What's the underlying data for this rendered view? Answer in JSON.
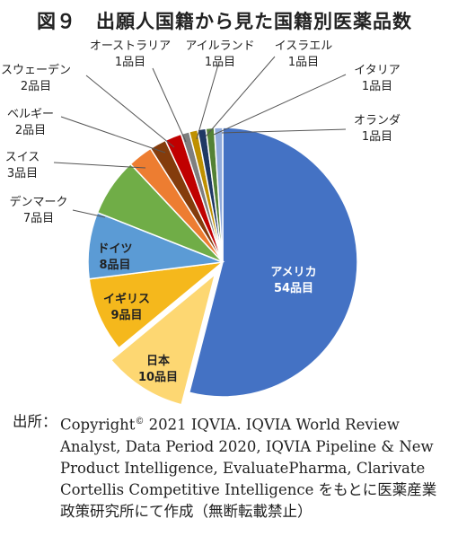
{
  "chart_data": {
    "type": "pie",
    "title": "図９　出願人国籍から見た国籍別医薬品数",
    "unit": "品目",
    "slices": [
      {
        "label": "アメリカ",
        "value": 54,
        "value_text": "54品目",
        "color": "#4472c4"
      },
      {
        "label": "日本",
        "value": 10,
        "value_text": "10品目",
        "color": "#fdd772",
        "exploded": true
      },
      {
        "label": "イギリス",
        "value": 9,
        "value_text": "9品目",
        "color": "#f5b81c"
      },
      {
        "label": "ドイツ",
        "value": 8,
        "value_text": "8品目",
        "color": "#5b9bd5"
      },
      {
        "label": "デンマーク",
        "value": 7,
        "value_text": "7品目",
        "color": "#70ad47"
      },
      {
        "label": "スイス",
        "value": 3,
        "value_text": "3品目",
        "color": "#ed7d31"
      },
      {
        "label": "ベルギー",
        "value": 2,
        "value_text": "2品目",
        "color": "#843c0c"
      },
      {
        "label": "スウェーデン",
        "value": 2,
        "value_text": "2品目",
        "color": "#c00000"
      },
      {
        "label": "オーストラリア",
        "value": 1,
        "value_text": "1品目",
        "color": "#7f7f7f"
      },
      {
        "label": "アイルランド",
        "value": 1,
        "value_text": "1品目",
        "color": "#bf9000"
      },
      {
        "label": "イスラエル",
        "value": 1,
        "value_text": "1品目",
        "color": "#1f3864"
      },
      {
        "label": "イタリア",
        "value": 1,
        "value_text": "1品目",
        "color": "#548235"
      },
      {
        "label": "オランダ",
        "value": 1,
        "value_text": "1品目",
        "color": "#8faadc"
      }
    ]
  },
  "source": {
    "prefix": "出所：",
    "copyright_word": "Copyright",
    "copyright_mark": "©",
    "text": " 2021 IQVIA. IQVIA World Review Analyst, Data Period 2020, IQVIA Pipeline & New Product Intelligence, EvaluatePharma, Clarivate Cortellis Competitive Intelligence をもとに医薬産業政策研究所にて作成（無断転載禁止）"
  }
}
